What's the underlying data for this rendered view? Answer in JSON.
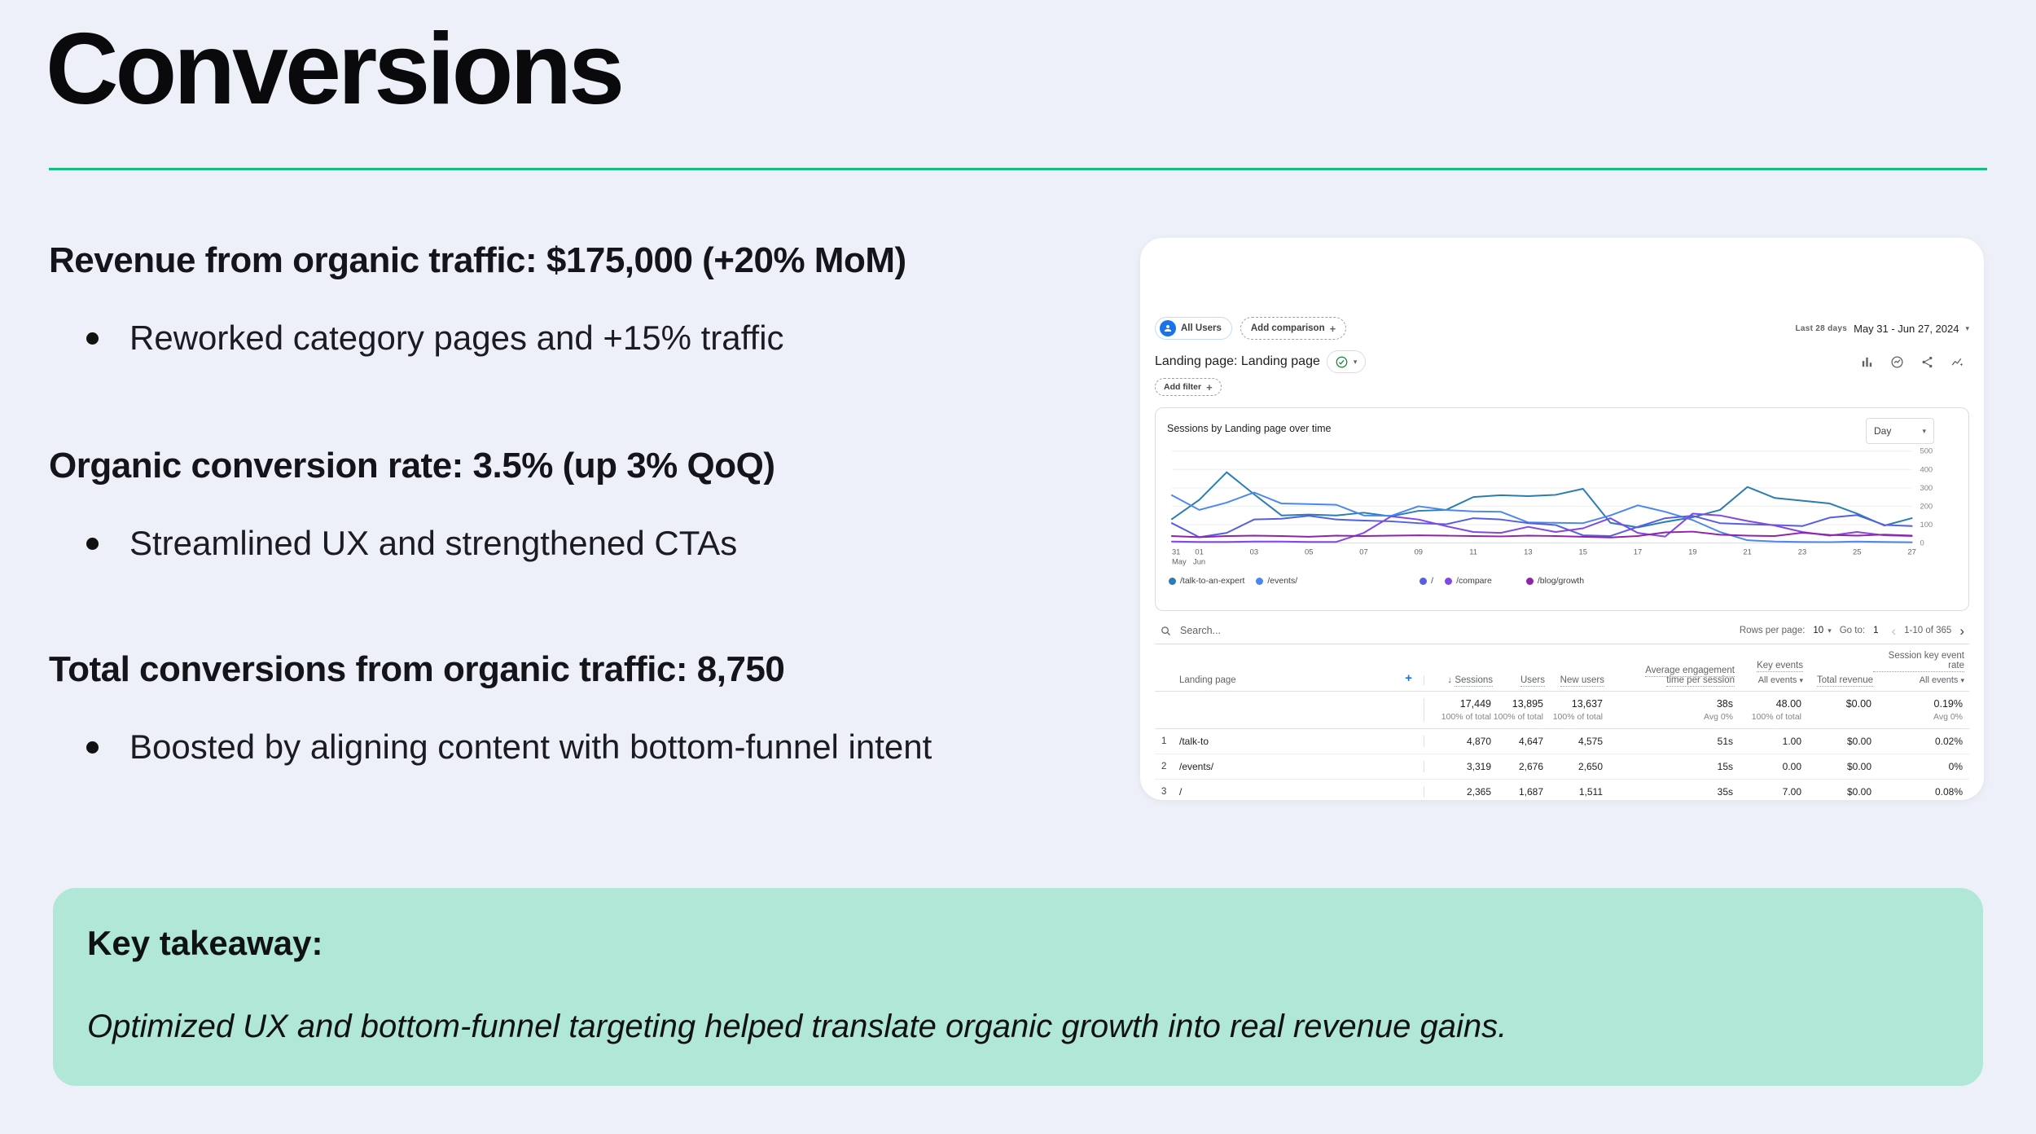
{
  "slide": {
    "title": "Conversions",
    "colors": {
      "background": "#edf0f8",
      "accent_rule": "#14bd7e",
      "takeaway_bg": "#b0e7d7"
    },
    "sections": [
      {
        "heading": "Revenue from organic traffic: $175,000 (+20% MoM)",
        "bullet": "Reworked category pages and +15% traffic"
      },
      {
        "heading": "Organic conversion rate: 3.5% (up 3% QoQ)",
        "bullet": "Streamlined UX and strengthened CTAs"
      },
      {
        "heading": "Total conversions from organic traffic: 8,750",
        "bullet": "Boosted by aligning content with bottom-funnel intent"
      }
    ],
    "takeaway": {
      "label": "Key takeaway:",
      "text": "Optimized UX and bottom-funnel targeting helped translate organic growth into real revenue gains."
    }
  },
  "icons": {
    "plus": "+",
    "caret_down": "▾",
    "chevron_left": "‹",
    "chevron_right": "›",
    "sort_descending": "↓"
  },
  "ga": {
    "toolbar": {
      "all_users": "All Users",
      "add_comparison": "Add comparison",
      "date_badge": "Last 28 days",
      "date_range": "May 31 - Jun 27, 2024"
    },
    "filter_bar": {
      "label": "Landing page: Landing page",
      "add_filter": "Add filter"
    },
    "search_row": {
      "placeholder": "Search...",
      "rows_per_page_label": "Rows per page:",
      "rows_per_page_value": "10",
      "goto_label": "Go to:",
      "goto_value": "1",
      "range": "1-10 of 365"
    },
    "table": {
      "headers": {
        "landing_page": "Landing page",
        "sessions": "Sessions",
        "users": "Users",
        "new_users": "New users",
        "avg_engagement": "Average engagement time per session",
        "key_events": "Key events",
        "key_events_sub": "All events",
        "total_revenue": "Total revenue",
        "session_rate": "Session key event rate",
        "session_rate_sub": "All events"
      },
      "totals": {
        "sessions": "17,449",
        "sessions_note": "100% of total",
        "users": "13,895",
        "users_note": "100% of total",
        "new_users": "13,637",
        "new_users_note": "100% of total",
        "avg_engagement": "38s",
        "avg_engagement_note": "Avg 0%",
        "key_events": "48.00",
        "key_events_note": "100% of total",
        "total_revenue": "$0.00",
        "session_rate": "0.19%",
        "session_rate_note": "Avg 0%"
      },
      "rows": [
        {
          "index": "1",
          "landing_page": "/talk-to",
          "sessions": "4,870",
          "users": "4,647",
          "new_users": "4,575",
          "avg_engagement": "51s",
          "key_events": "1.00",
          "total_revenue": "$0.00",
          "session_rate": "0.02%"
        },
        {
          "index": "2",
          "landing_page": "/events/",
          "sessions": "3,319",
          "users": "2,676",
          "new_users": "2,650",
          "avg_engagement": "15s",
          "key_events": "0.00",
          "total_revenue": "$0.00",
          "session_rate": "0%"
        },
        {
          "index": "3",
          "landing_page": "/",
          "sessions": "2,365",
          "users": "1,687",
          "new_users": "1,511",
          "avg_engagement": "35s",
          "key_events": "7.00",
          "total_revenue": "$0.00",
          "session_rate": "0.08%"
        }
      ]
    }
  },
  "chart_data": {
    "type": "line",
    "title": "Sessions by Landing page over time",
    "granularity": "Day",
    "ylabel": "Sessions",
    "ylim": [
      0,
      500
    ],
    "yticks": [
      0,
      100,
      200,
      300,
      400,
      500
    ],
    "grid": true,
    "legend_position": "bottom",
    "x": [
      "May 31",
      "Jun 01",
      "Jun 02",
      "Jun 03",
      "Jun 04",
      "Jun 05",
      "Jun 06",
      "Jun 07",
      "Jun 08",
      "Jun 09",
      "Jun 10",
      "Jun 11",
      "Jun 12",
      "Jun 13",
      "Jun 14",
      "Jun 15",
      "Jun 16",
      "Jun 17",
      "Jun 18",
      "Jun 19",
      "Jun 20",
      "Jun 21",
      "Jun 22",
      "Jun 23",
      "Jun 24",
      "Jun 25",
      "Jun 26",
      "Jun 27"
    ],
    "xticks": [
      {
        "i": 0,
        "label": "31",
        "sub": "May"
      },
      {
        "i": 1,
        "label": "01",
        "sub": "Jun"
      },
      {
        "i": 3,
        "label": "03"
      },
      {
        "i": 5,
        "label": "05"
      },
      {
        "i": 7,
        "label": "07"
      },
      {
        "i": 9,
        "label": "09"
      },
      {
        "i": 11,
        "label": "11"
      },
      {
        "i": 13,
        "label": "13"
      },
      {
        "i": 15,
        "label": "15"
      },
      {
        "i": 17,
        "label": "17"
      },
      {
        "i": 19,
        "label": "19"
      },
      {
        "i": 21,
        "label": "21"
      },
      {
        "i": 23,
        "label": "23"
      },
      {
        "i": 25,
        "label": "25"
      },
      {
        "i": 27,
        "label": "27"
      }
    ],
    "series": [
      {
        "name": "/talk-to-an-expert",
        "color": "#2b7cb3",
        "values": [
          130,
          235,
          385,
          265,
          150,
          155,
          150,
          165,
          145,
          175,
          180,
          250,
          260,
          255,
          262,
          295,
          110,
          85,
          115,
          140,
          180,
          305,
          245,
          230,
          215,
          160,
          95,
          135
        ]
      },
      {
        "name": "/events/",
        "color": "#4c87f0",
        "values": [
          260,
          180,
          220,
          275,
          215,
          212,
          208,
          150,
          148,
          200,
          180,
          172,
          170,
          112,
          110,
          108,
          150,
          205,
          170,
          125,
          60,
          15,
          8,
          6,
          5,
          8,
          6,
          4
        ]
      },
      {
        "name": "/",
        "color": "#555fe0",
        "values": [
          108,
          32,
          55,
          128,
          132,
          148,
          128,
          122,
          118,
          108,
          102,
          135,
          128,
          108,
          98,
          42,
          38,
          88,
          135,
          148,
          108,
          102,
          98,
          92,
          138,
          152,
          98,
          92
        ]
      },
      {
        "name": "/compare",
        "color": "#8247e5",
        "values": [
          8,
          6,
          6,
          8,
          8,
          6,
          6,
          55,
          145,
          128,
          92,
          60,
          55,
          88,
          60,
          80,
          135,
          55,
          35,
          160,
          150,
          120,
          95,
          60,
          40,
          60,
          42,
          38
        ]
      },
      {
        "name": "/blog/growth",
        "color": "#8e24aa",
        "values": [
          38,
          32,
          38,
          40,
          38,
          34,
          40,
          38,
          40,
          42,
          40,
          38,
          36,
          40,
          38,
          34,
          30,
          38,
          58,
          62,
          45,
          40,
          38,
          56,
          44,
          40,
          46,
          40
        ]
      }
    ]
  }
}
